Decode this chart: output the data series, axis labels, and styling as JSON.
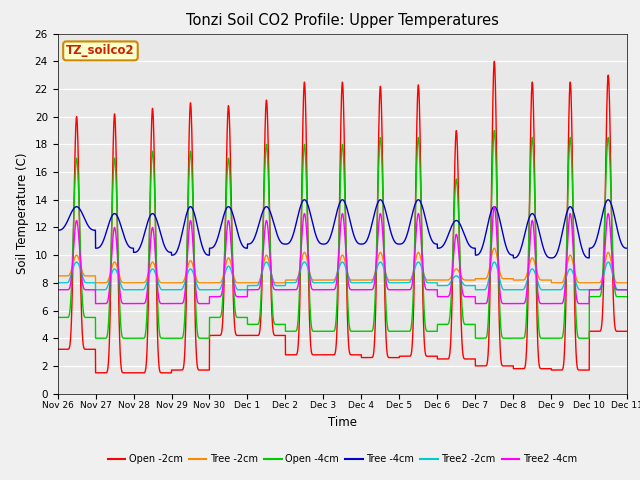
{
  "title": "Tonzi Soil CO2 Profile: Upper Temperatures",
  "xlabel": "Time",
  "ylabel": "Soil Temperature (C)",
  "ylim": [
    0,
    26
  ],
  "num_days": 15,
  "pts_per_day": 240,
  "fig_bg": "#f0f0f0",
  "plot_bg": "#e8e8e8",
  "label_box": "TZ_soilco2",
  "label_box_bg": "#ffffcc",
  "label_box_edge": "#cc8800",
  "series": [
    {
      "name": "Open -2cm",
      "color": "#ff0000"
    },
    {
      "name": "Tree -2cm",
      "color": "#ff8800"
    },
    {
      "name": "Open -4cm",
      "color": "#00cc00"
    },
    {
      "name": "Tree -4cm",
      "color": "#0000cc"
    },
    {
      "name": "Tree2 -2cm",
      "color": "#00cccc"
    },
    {
      "name": "Tree2 -4cm",
      "color": "#ff00ff"
    }
  ],
  "tick_labels": [
    "Nov 26",
    "Nov 27",
    "Nov 28",
    "Nov 29",
    "Nov 30",
    "Dec 1",
    "Dec 2",
    "Dec 3",
    "Dec 4",
    "Dec 5",
    "Dec 6",
    "Dec 7",
    "Dec 8",
    "Dec 9",
    "Dec 10",
    "Dec 11"
  ]
}
